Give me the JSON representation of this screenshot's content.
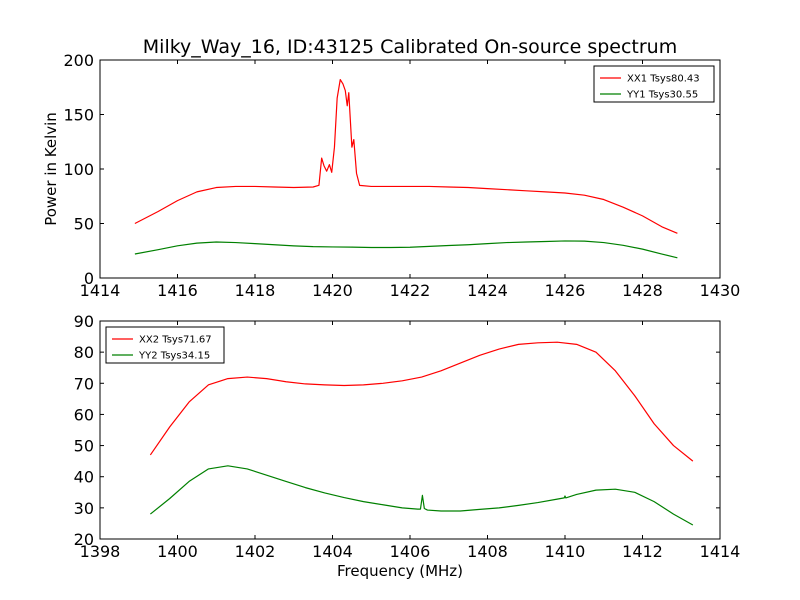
{
  "figure_title": "Milky_Way_16, ID:43125 Calibrated On-source spectrum",
  "colors": {
    "red": "#ff0000",
    "green": "#008000",
    "frame": "#000000",
    "background": "#ffffff"
  },
  "chart_data": [
    {
      "type": "line",
      "title": "Milky_Way_16, ID:43125 Calibrated On-source spectrum",
      "xlabel": "",
      "ylabel": "Power in Kelvin",
      "xlim": [
        1414,
        1430
      ],
      "ylim": [
        0,
        200
      ],
      "xticks": [
        1414,
        1416,
        1418,
        1420,
        1422,
        1424,
        1426,
        1428,
        1430
      ],
      "yticks": [
        0,
        50,
        100,
        150,
        200
      ],
      "grid": false,
      "legend": "top-right",
      "series": [
        {
          "name": "XX1 Tsys80.43",
          "color": "#ff0000",
          "x": [
            1414.9,
            1415.5,
            1416.0,
            1416.5,
            1417.0,
            1417.5,
            1418.0,
            1418.5,
            1419.0,
            1419.5,
            1419.65,
            1419.72,
            1419.78,
            1419.85,
            1419.92,
            1419.98,
            1420.05,
            1420.12,
            1420.2,
            1420.27,
            1420.33,
            1420.38,
            1420.42,
            1420.46,
            1420.5,
            1420.55,
            1420.62,
            1420.7,
            1421.0,
            1421.5,
            1422.0,
            1422.5,
            1423.0,
            1423.5,
            1424.0,
            1424.5,
            1425.0,
            1425.5,
            1426.0,
            1426.5,
            1427.0,
            1427.5,
            1428.0,
            1428.5,
            1428.9
          ],
          "y": [
            50,
            61,
            71,
            79,
            83,
            84,
            84,
            83.5,
            83,
            83.5,
            85,
            110,
            103,
            98,
            104,
            97,
            120,
            165,
            182,
            178,
            172,
            158,
            170,
            145,
            120,
            127,
            96,
            85,
            84,
            84,
            84,
            84,
            83.5,
            83,
            82,
            81,
            80,
            79,
            78,
            76,
            72,
            65,
            57,
            47,
            41
          ]
        },
        {
          "name": "YY1 Tsys30.55",
          "color": "#008000",
          "x": [
            1414.9,
            1415.5,
            1416.0,
            1416.5,
            1417.0,
            1417.5,
            1418.0,
            1418.5,
            1419.0,
            1419.5,
            1420.0,
            1420.5,
            1421.0,
            1421.5,
            1422.0,
            1422.5,
            1423.0,
            1423.5,
            1424.0,
            1424.5,
            1425.0,
            1425.5,
            1426.0,
            1426.5,
            1427.0,
            1427.5,
            1428.0,
            1428.5,
            1428.9
          ],
          "y": [
            22,
            26,
            29.5,
            32,
            33,
            32.5,
            31.5,
            30.5,
            29.5,
            28.8,
            28.5,
            28.3,
            28,
            28,
            28.2,
            29,
            29.8,
            30.5,
            31.5,
            32.5,
            33,
            33.5,
            34,
            33.8,
            32.5,
            30,
            26.5,
            22,
            18.5
          ]
        }
      ]
    },
    {
      "type": "line",
      "title": "",
      "xlabel": "Frequency (MHz)",
      "ylabel": "",
      "xlim": [
        1398,
        1414
      ],
      "ylim": [
        20,
        90
      ],
      "xticks": [
        1398,
        1400,
        1402,
        1404,
        1406,
        1408,
        1410,
        1412,
        1414
      ],
      "yticks": [
        20,
        30,
        40,
        50,
        60,
        70,
        80,
        90
      ],
      "grid": false,
      "legend": "top-left",
      "series": [
        {
          "name": "XX2 Tsys71.67",
          "color": "#ff0000",
          "x": [
            1399.3,
            1399.8,
            1400.3,
            1400.8,
            1401.3,
            1401.8,
            1402.3,
            1402.8,
            1403.3,
            1403.8,
            1404.3,
            1404.8,
            1405.3,
            1405.8,
            1406.3,
            1406.8,
            1407.3,
            1407.8,
            1408.3,
            1408.8,
            1409.3,
            1409.8,
            1410.3,
            1410.8,
            1411.3,
            1411.8,
            1412.3,
            1412.8,
            1413.3
          ],
          "y": [
            47,
            56,
            64,
            69.5,
            71.5,
            72,
            71.5,
            70.5,
            69.8,
            69.5,
            69.3,
            69.5,
            70,
            70.8,
            72,
            74,
            76.5,
            79,
            81,
            82.5,
            83,
            83.2,
            82.5,
            80,
            74,
            66,
            57,
            50,
            45
          ]
        },
        {
          "name": "YY2 Tsys34.15",
          "color": "#008000",
          "x": [
            1399.3,
            1399.8,
            1400.3,
            1400.8,
            1401.3,
            1401.8,
            1402.3,
            1402.8,
            1403.3,
            1403.8,
            1404.3,
            1404.8,
            1405.3,
            1405.8,
            1406.2,
            1406.27,
            1406.32,
            1406.37,
            1406.45,
            1406.8,
            1407.3,
            1407.8,
            1408.3,
            1408.8,
            1409.3,
            1409.8,
            1409.98,
            1410.0,
            1410.02,
            1410.3,
            1410.8,
            1411.3,
            1411.8,
            1412.3,
            1412.8,
            1413.3
          ],
          "y": [
            28,
            33,
            38.5,
            42.5,
            43.5,
            42.5,
            40.5,
            38.5,
            36.5,
            34.8,
            33.3,
            32,
            31,
            30,
            29.6,
            29.6,
            34,
            29.8,
            29.3,
            29,
            29,
            29.5,
            30,
            30.8,
            31.7,
            32.8,
            33.2,
            33.8,
            33.2,
            34.3,
            35.7,
            36,
            35,
            32,
            28,
            24.5
          ]
        }
      ]
    }
  ]
}
